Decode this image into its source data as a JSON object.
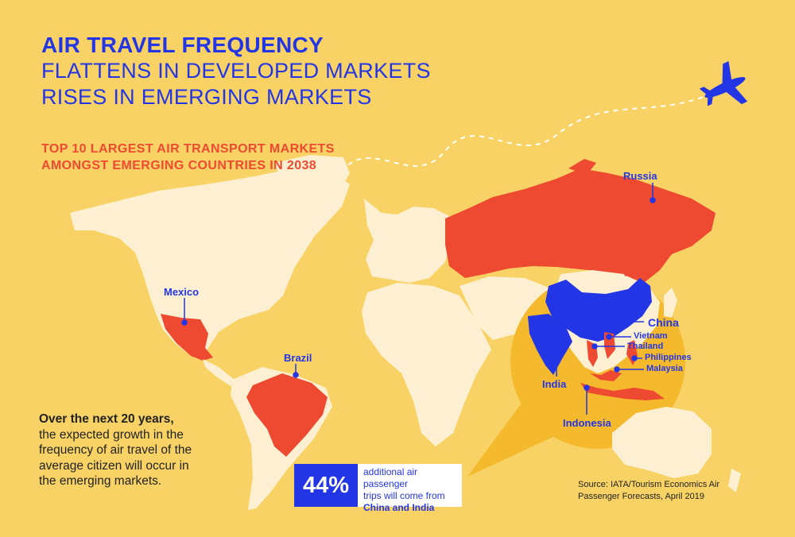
{
  "title": {
    "line1": "AIR TRAVEL FREQUENCY",
    "line2": "FLATTENS IN DEVELOPED MARKETS",
    "line3": "RISES IN EMERGING MARKETS"
  },
  "subtitle": {
    "line1": "TOP 10 LARGEST AIR TRANSPORT MARKETS",
    "line2": "AMONGST EMERGING COUNTRIES IN 2038"
  },
  "map": {
    "labels": {
      "russia": "Russia",
      "mexico": "Mexico",
      "brazil": "Brazil",
      "china": "China",
      "vietnam": "Vietnam",
      "thailand": "Thailand",
      "philippines": "Philippines",
      "malaysia": "Malaysia",
      "india": "India",
      "indonesia": "Indonesia"
    },
    "colors": {
      "background": "#f8d264",
      "land": "#fdf0d2",
      "highlight_red": "#ee4a31",
      "highlight_blue": "#2336e6",
      "zoom_circle": "#f4b92c"
    },
    "icons": [
      "airplane-icon"
    ]
  },
  "note": {
    "bold": "Over the next 20 years,",
    "text": "the expected growth in the frequency of air travel of the average citizen will occur in the emerging markets."
  },
  "stat": {
    "value": "44%",
    "line1": "additional air passenger",
    "line2": "trips will come from",
    "line3": "China and India"
  },
  "source": {
    "line1": "Source: IATA/Tourism Economics Air",
    "line2": "Passenger Forecasts, April 2019"
  }
}
